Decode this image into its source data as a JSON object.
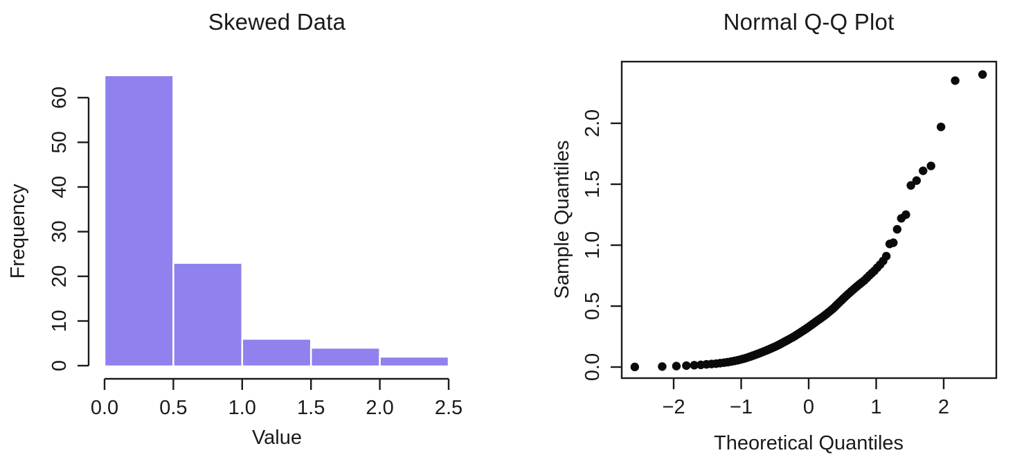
{
  "chart_data": [
    {
      "type": "bar",
      "subtype": "histogram",
      "title": "Skewed Data",
      "xlabel": "Value",
      "ylabel": "Frequency",
      "bin_edges": [
        0.0,
        0.5,
        1.0,
        1.5,
        2.0,
        2.5
      ],
      "counts": [
        65,
        23,
        6,
        4,
        2
      ],
      "x_tick_labels": [
        "0.0",
        "0.5",
        "1.0",
        "1.5",
        "2.0",
        "2.5"
      ],
      "y_tick_values": [
        0,
        10,
        20,
        30,
        40,
        50,
        60
      ],
      "xlim": [
        0,
        2.5
      ],
      "ylim": [
        0,
        65
      ],
      "grid": "off",
      "bar_fill": "#8f81ee",
      "bar_border": "#ffffff",
      "axis_color": "#1a1a1a"
    },
    {
      "type": "scatter",
      "subtype": "normal-qq-plot",
      "title": "Normal Q-Q Plot",
      "xlabel": "Theoretical Quantiles",
      "ylabel": "Sample Quantiles",
      "x_tick_values": [
        -2,
        -1,
        0,
        1,
        2
      ],
      "y_tick_labels": [
        "0.0",
        "0.5",
        "1.0",
        "1.5",
        "2.0"
      ],
      "xlim": [
        -2.77,
        2.78
      ],
      "ylim": [
        -0.09,
        2.51
      ],
      "grid": "off",
      "point_color": "#0a0a0a",
      "axis_color": "#1a1a1a",
      "x": [
        -2.576,
        -2.17,
        -1.96,
        -1.812,
        -1.695,
        -1.598,
        -1.514,
        -1.44,
        -1.372,
        -1.311,
        -1.254,
        -1.2,
        -1.15,
        -1.103,
        -1.058,
        -1.015,
        -0.974,
        -0.935,
        -0.896,
        -0.86,
        -0.824,
        -0.789,
        -0.755,
        -0.722,
        -0.69,
        -0.659,
        -0.628,
        -0.598,
        -0.568,
        -0.539,
        -0.51,
        -0.482,
        -0.454,
        -0.426,
        -0.399,
        -0.372,
        -0.345,
        -0.319,
        -0.292,
        -0.266,
        -0.24,
        -0.215,
        -0.189,
        -0.164,
        -0.138,
        -0.113,
        -0.088,
        -0.063,
        -0.038,
        -0.013,
        0.013,
        0.038,
        0.063,
        0.088,
        0.113,
        0.138,
        0.164,
        0.189,
        0.215,
        0.24,
        0.266,
        0.292,
        0.319,
        0.345,
        0.372,
        0.399,
        0.426,
        0.454,
        0.482,
        0.51,
        0.539,
        0.568,
        0.598,
        0.628,
        0.659,
        0.69,
        0.722,
        0.755,
        0.789,
        0.824,
        0.86,
        0.896,
        0.935,
        0.974,
        1.015,
        1.058,
        1.103,
        1.15,
        1.2,
        1.254,
        1.311,
        1.372,
        1.44,
        1.514,
        1.598,
        1.695,
        1.812,
        1.96,
        2.17,
        2.576
      ],
      "y": [
        0.001,
        0.004,
        0.008,
        0.012,
        0.015,
        0.018,
        0.022,
        0.025,
        0.028,
        0.032,
        0.036,
        0.04,
        0.045,
        0.05,
        0.055,
        0.061,
        0.067,
        0.073,
        0.08,
        0.087,
        0.094,
        0.101,
        0.108,
        0.115,
        0.122,
        0.129,
        0.136,
        0.143,
        0.15,
        0.157,
        0.164,
        0.171,
        0.179,
        0.187,
        0.195,
        0.203,
        0.211,
        0.219,
        0.227,
        0.235,
        0.243,
        0.251,
        0.26,
        0.269,
        0.278,
        0.287,
        0.296,
        0.305,
        0.314,
        0.324,
        0.334,
        0.344,
        0.354,
        0.364,
        0.374,
        0.384,
        0.394,
        0.404,
        0.414,
        0.425,
        0.436,
        0.448,
        0.46,
        0.472,
        0.485,
        0.5,
        0.515,
        0.53,
        0.545,
        0.56,
        0.575,
        0.59,
        0.605,
        0.62,
        0.635,
        0.65,
        0.665,
        0.68,
        0.695,
        0.71,
        0.73,
        0.75,
        0.77,
        0.79,
        0.815,
        0.84,
        0.87,
        0.91,
        1.01,
        1.02,
        1.13,
        1.22,
        1.25,
        1.49,
        1.53,
        1.61,
        1.65,
        1.97,
        2.35,
        2.4
      ]
    }
  ]
}
